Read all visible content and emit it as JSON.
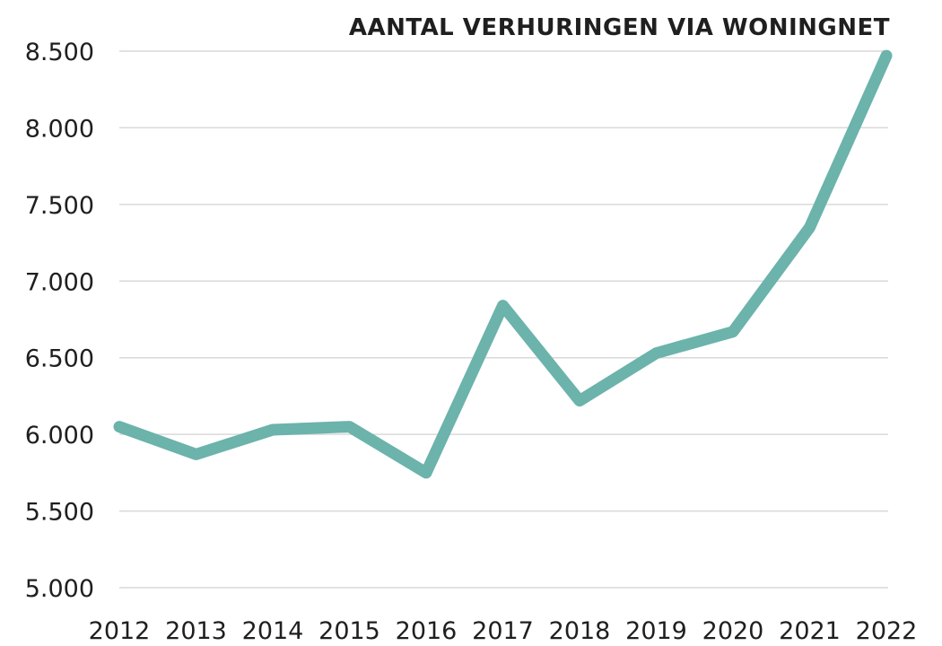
{
  "chart_data": {
    "type": "line",
    "title": "AANTAL VERHURINGEN VIA WONINGNET",
    "xlabel": "",
    "ylabel": "",
    "categories": [
      "2012",
      "2013",
      "2014",
      "2015",
      "2016",
      "2017",
      "2018",
      "2019",
      "2020",
      "2021",
      "2022"
    ],
    "series": [
      {
        "values": [
          6050,
          5870,
          6030,
          6050,
          5750,
          6840,
          6220,
          6530,
          6670,
          7350,
          8470
        ],
        "color": "#6bb3ab"
      }
    ],
    "ylim": [
      5000,
      8500
    ],
    "yticks": [
      5000,
      5500,
      6000,
      6500,
      7000,
      7500,
      8000,
      8500
    ],
    "ytick_labels": [
      "5.000",
      "5.500",
      "6.000",
      "6.500",
      "7.000",
      "7.500",
      "8.000",
      "8.500"
    ],
    "grid": true,
    "legend": false
  }
}
